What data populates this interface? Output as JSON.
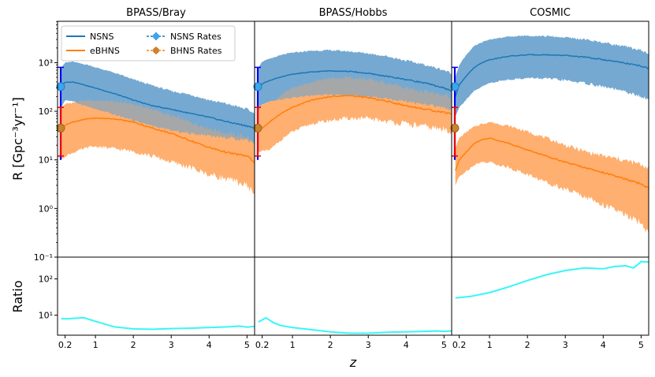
{
  "chart_data": {
    "type": "line",
    "xlabel": "z",
    "ylabel_top": "R [Gpc⁻³yr⁻¹]",
    "ylabel_bottom": "Ratio",
    "xlim": [
      0.0,
      5.2
    ],
    "ylim_top_log10": [
      -1,
      3.85
    ],
    "ylim_bottom_log10": [
      0.45,
      2.6
    ],
    "x_ticks": [
      0.2,
      1,
      2,
      3,
      4,
      5
    ],
    "x_tick_labels": [
      "0.2",
      "1",
      "2",
      "3",
      "4",
      "5"
    ],
    "y_ticks_top": [
      {
        "exp": -1,
        "label": "10⁻¹"
      },
      {
        "exp": 0,
        "label": "10⁰"
      },
      {
        "exp": 1,
        "label": "10¹"
      },
      {
        "exp": 2,
        "label": "10²"
      },
      {
        "exp": 3,
        "label": "10³"
      }
    ],
    "y_ticks_bottom": [
      {
        "exp": 1,
        "label": "10¹"
      },
      {
        "exp": 2,
        "label": "10²"
      }
    ],
    "legend": [
      {
        "label": "NSNS",
        "kind": "line",
        "color": "#1f77b4"
      },
      {
        "label": "eBHNS",
        "kind": "line",
        "color": "#ff7f0e"
      },
      {
        "label": "NSNS Rates",
        "kind": "errorbar",
        "color": "#1f77b4",
        "marker_color": "#3aa6ee"
      },
      {
        "label": "BHNS Rates",
        "kind": "errorbar",
        "color": "#ff7f0e",
        "marker_color": "#c8842f"
      }
    ],
    "colors": {
      "nsns_line": "#1f77b4",
      "nsns_band": "#6ea4d0",
      "bhns_line": "#ff7f0e",
      "bhns_band": "#ffad6a",
      "ratio_line": "#38f6f6",
      "nsns_err": "#0000ee",
      "bhns_err": "#ee0000",
      "nsns_marker": "#3aa6ee",
      "bhns_marker": "#c8842f"
    },
    "observed_rates": {
      "z": 0.0,
      "nsns": {
        "value": 320,
        "low": 10,
        "high": 800
      },
      "bhns": {
        "value": 45,
        "low": 12,
        "high": 120
      }
    },
    "panels": [
      {
        "title": "BPASS/Bray",
        "x": [
          0.1,
          0.2,
          0.4,
          0.6,
          0.8,
          1.0,
          1.5,
          2.0,
          2.5,
          3.0,
          3.5,
          4.0,
          4.5,
          5.0,
          5.2
        ],
        "nsns": {
          "median": [
            350,
            390,
            400,
            370,
            330,
            300,
            230,
            170,
            130,
            110,
            90,
            75,
            60,
            50,
            45
          ],
          "upper": [
            800,
            1000,
            1050,
            960,
            900,
            800,
            620,
            450,
            340,
            260,
            220,
            170,
            140,
            110,
            90
          ],
          "lower": [
            120,
            170,
            160,
            140,
            125,
            110,
            85,
            65,
            50,
            40,
            35,
            32,
            28,
            26,
            22
          ]
        },
        "bhns": {
          "median": [
            45,
            52,
            60,
            65,
            70,
            72,
            70,
            60,
            45,
            35,
            25,
            18,
            14,
            12,
            9
          ],
          "upper": [
            120,
            140,
            150,
            160,
            170,
            165,
            160,
            140,
            110,
            80,
            60,
            45,
            35,
            30,
            22
          ],
          "lower": [
            10,
            12,
            14,
            16,
            18,
            19,
            17,
            15,
            12,
            9,
            7,
            5,
            4,
            3,
            2
          ]
        },
        "ratio": {
          "x": [
            0.1,
            0.3,
            0.5,
            0.7,
            1.0,
            1.5,
            2.0,
            2.5,
            3.0,
            3.5,
            4.0,
            4.5,
            4.8,
            5.0,
            5.2
          ],
          "y": [
            8,
            8,
            8.3,
            8.5,
            6.8,
            4.8,
            4.2,
            4.1,
            4.3,
            4.4,
            4.6,
            4.8,
            5.0,
            4.7,
            4.9
          ]
        }
      },
      {
        "title": "BPASS/Hobbs",
        "x": [
          0.1,
          0.2,
          0.4,
          0.6,
          0.8,
          1.0,
          1.5,
          2.0,
          2.5,
          3.0,
          3.5,
          4.0,
          4.5,
          5.0,
          5.2
        ],
        "nsns": {
          "median": [
            280,
            370,
            430,
            480,
            530,
            580,
            640,
            680,
            660,
            600,
            520,
            450,
            380,
            300,
            260
          ],
          "upper": [
            800,
            1050,
            1200,
            1350,
            1500,
            1600,
            1750,
            1800,
            1700,
            1550,
            1350,
            1100,
            900,
            700,
            600
          ],
          "lower": [
            100,
            140,
            160,
            170,
            180,
            190,
            210,
            220,
            210,
            200,
            180,
            160,
            140,
            120,
            110
          ]
        },
        "bhns": {
          "median": [
            45,
            45,
            60,
            80,
            100,
            120,
            170,
            200,
            210,
            190,
            160,
            130,
            110,
            95,
            90
          ],
          "upper": [
            130,
            140,
            160,
            180,
            250,
            300,
            400,
            480,
            500,
            450,
            380,
            300,
            250,
            210,
            200
          ],
          "lower": [
            15,
            15,
            16,
            22,
            30,
            38,
            55,
            65,
            72,
            70,
            62,
            55,
            48,
            42,
            40
          ]
        },
        "ratio": {
          "x": [
            0.1,
            0.3,
            0.5,
            0.7,
            1.0,
            1.5,
            2.0,
            2.5,
            3.0,
            3.5,
            4.0,
            4.5,
            4.8,
            5.0,
            5.2
          ],
          "y": [
            6.5,
            8.5,
            6.2,
            5.2,
            4.6,
            4.0,
            3.5,
            3.2,
            3.2,
            3.4,
            3.5,
            3.6,
            3.7,
            3.6,
            3.7
          ]
        }
      },
      {
        "title": "COSMIC",
        "x": [
          0.1,
          0.2,
          0.4,
          0.6,
          0.8,
          1.0,
          1.5,
          2.0,
          2.5,
          3.0,
          3.5,
          4.0,
          4.5,
          5.0,
          5.2
        ],
        "nsns": {
          "median": [
            200,
            350,
            550,
            800,
            1000,
            1150,
            1350,
            1450,
            1450,
            1400,
            1300,
            1150,
            1000,
            850,
            750
          ],
          "upper": [
            500,
            900,
            1500,
            2200,
            2600,
            3000,
            3400,
            3600,
            3500,
            3300,
            3000,
            2600,
            2200,
            1800,
            1500
          ],
          "lower": [
            80,
            120,
            180,
            260,
            320,
            380,
            450,
            480,
            470,
            430,
            380,
            320,
            260,
            200,
            170
          ]
        },
        "bhns": {
          "median": [
            6,
            10,
            15,
            22,
            26,
            28,
            22,
            16,
            12,
            9,
            7,
            5.5,
            4.2,
            3.2,
            2.6
          ],
          "upper": [
            18,
            28,
            38,
            48,
            55,
            60,
            50,
            38,
            28,
            20,
            15,
            12,
            10,
            8,
            7
          ],
          "lower": [
            3,
            4.5,
            6,
            8,
            9,
            9,
            7,
            5,
            3.5,
            2.5,
            1.8,
            1.2,
            0.8,
            0.5,
            0.3
          ]
        },
        "ratio": {
          "x": [
            0.1,
            0.5,
            1.0,
            1.5,
            2.0,
            2.5,
            3.0,
            3.5,
            4.0,
            4.3,
            4.6,
            4.8,
            5.0,
            5.2
          ],
          "y": [
            30,
            33,
            42,
            60,
            90,
            130,
            170,
            200,
            190,
            220,
            230,
            200,
            300,
            290
          ]
        }
      }
    ]
  }
}
